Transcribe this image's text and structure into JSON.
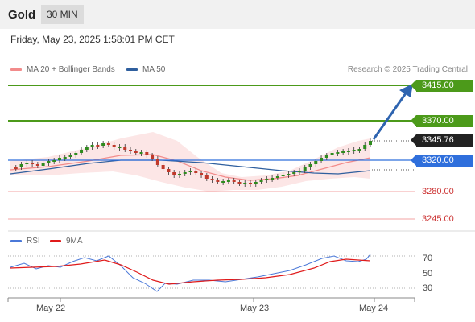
{
  "header": {
    "title": "Gold",
    "interval": "30 MIN"
  },
  "datetime": "Friday, May 23, 2025 1:58:01 PM CET",
  "legend": {
    "ma20": {
      "label": "MA 20 + Bollinger Bands",
      "color": "#f28b8b"
    },
    "ma50": {
      "label": "MA 50",
      "color": "#2f5f9e"
    }
  },
  "credit": "Research © 2025 Trading Central",
  "levels": {
    "l3415": {
      "value": "3415.00",
      "color": "#4c9a1a"
    },
    "l3370": {
      "value": "3370.00",
      "color": "#4c9a1a"
    },
    "current": {
      "value": "3345.76",
      "color": "#222222"
    },
    "l3320": {
      "value": "3320.00",
      "color": "#2f6fdc"
    },
    "l3280": {
      "value": "3280.00",
      "color": "#cc3333"
    },
    "l3245": {
      "value": "3245.00",
      "color": "#cc3333"
    }
  },
  "indicator": {
    "rsi_label": "RSI",
    "ma9_label": "9MA",
    "rsi_color": "#4a78d8",
    "ma9_color": "#e01b1b",
    "ticks": [
      "70",
      "50",
      "30"
    ]
  },
  "x_axis": {
    "labels": [
      "May 22",
      "May 23",
      "May 24"
    ]
  }
}
